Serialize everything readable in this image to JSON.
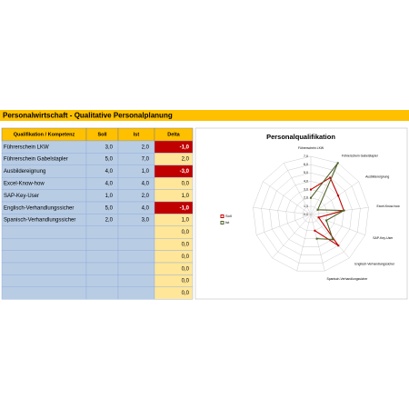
{
  "header": {
    "title": "Personalwirtschaft - Qualitative Personalplanung"
  },
  "table": {
    "columns": [
      "Qualifikation / Kompetenz",
      "Soll",
      "Ist",
      "Delta"
    ],
    "rows": [
      [
        "Führerschein LKW",
        "3,0",
        "2,0",
        "-1,0"
      ],
      [
        "Führerschein Gabelstapler",
        "5,0",
        "7,0",
        "2,0"
      ],
      [
        "Ausbildereignung",
        "4,0",
        "1,0",
        "-3,0"
      ],
      [
        "Excel-Know-how",
        "4,0",
        "4,0",
        "0,0"
      ],
      [
        "SAP-Key-User",
        "1,0",
        "2,0",
        "1,0"
      ],
      [
        "Englisch-Verhandlungssicher",
        "5,0",
        "4,0",
        "-1,0"
      ],
      [
        "Spanisch-Verhandlungssicher",
        "2,0",
        "3,0",
        "1,0"
      ],
      [
        null,
        null,
        null,
        "0,0"
      ],
      [
        null,
        null,
        null,
        "0,0"
      ],
      [
        null,
        null,
        null,
        "0,0"
      ],
      [
        null,
        null,
        null,
        "0,0"
      ],
      [
        null,
        null,
        null,
        "0,0"
      ],
      [
        null,
        null,
        null,
        "0,0"
      ]
    ]
  },
  "chart_data": {
    "type": "radar",
    "title": "Personalqualifikation",
    "categories": [
      "Führerschein LKW",
      "Führerschein Gabelstapler",
      "Ausbildereignung",
      "Excel-Know-how",
      "SAP-Key-User",
      "Englisch-Verhandlungssicher",
      "Spanisch-Verhandlungssicher",
      null,
      null,
      null,
      null,
      null,
      null
    ],
    "series": [
      {
        "name": "Soll",
        "color": "#c00000",
        "values": [
          3,
          5,
          4,
          4,
          1,
          5,
          2,
          null,
          null,
          null,
          null,
          null,
          null
        ]
      },
      {
        "name": "Ist",
        "color": "#4f6228",
        "values": [
          2,
          7,
          1,
          4,
          2,
          4,
          3,
          null,
          null,
          null,
          null,
          null,
          null
        ]
      }
    ],
    "ylim": [
      0,
      7
    ],
    "yticks": [
      {
        "value": 0,
        "label": "0,0"
      },
      {
        "value": 1,
        "label": "1,0"
      },
      {
        "value": 2,
        "label": "2,0"
      },
      {
        "value": 3,
        "label": "3,0"
      },
      {
        "value": 4,
        "label": "4,0"
      },
      {
        "value": 5,
        "label": "5,0"
      },
      {
        "value": 6,
        "label": "6,0"
      },
      {
        "value": 7,
        "label": "7,0"
      }
    ],
    "grid": true,
    "legend": "left"
  }
}
